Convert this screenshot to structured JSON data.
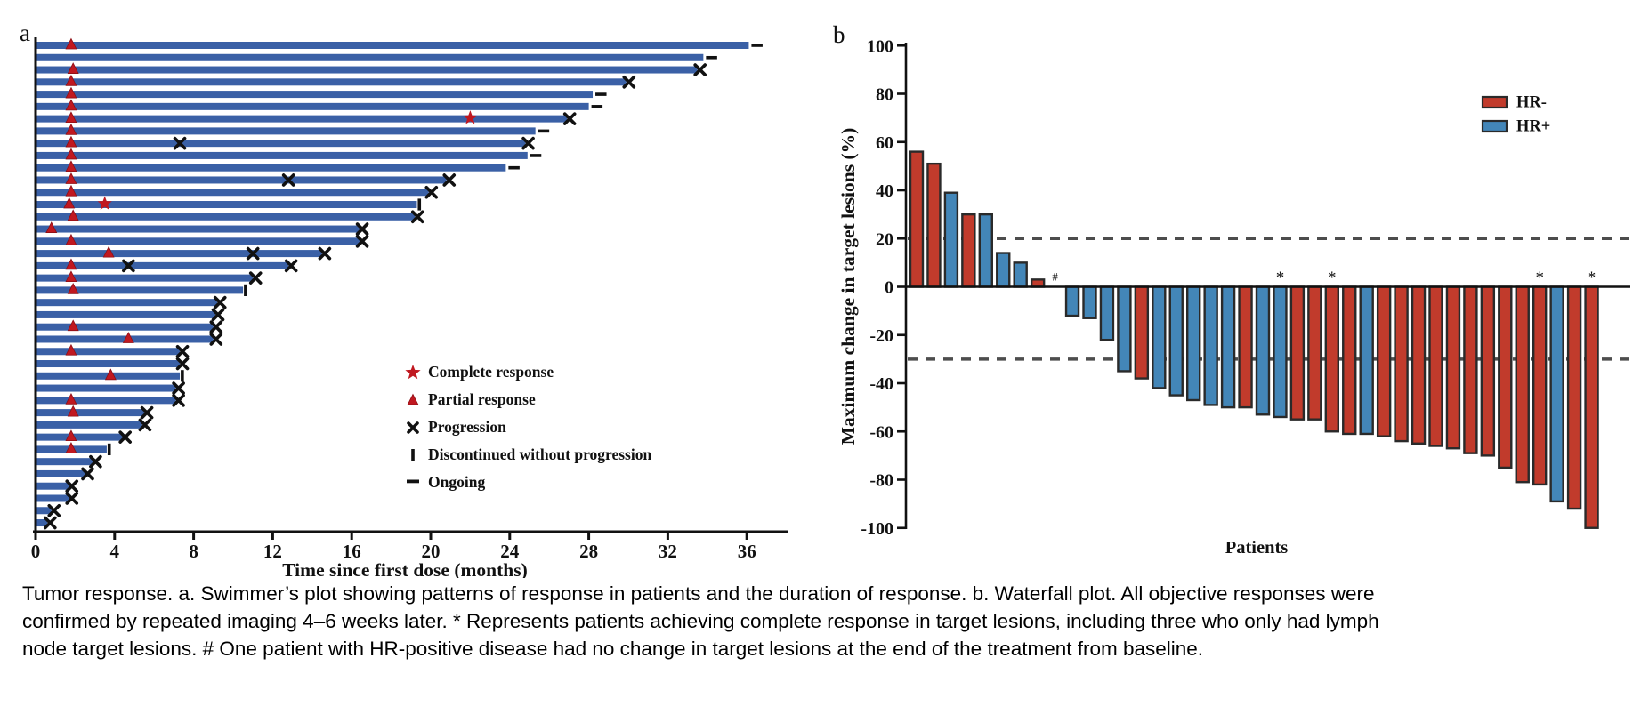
{
  "figure": {
    "panel_a_label": "a",
    "panel_b_label": "b"
  },
  "caption": {
    "lines": [
      "Tumor response. a. Swimmer’s plot showing patterns of response in patients and the duration of response. b. Waterfall plot. All objective responses were",
      "confirmed by repeated imaging 4–6 weeks later. * Represents patients achieving complete response in target lesions, including three who only had lymph",
      "node target lesions. # One patient with HR-positive disease had no change in target lesions at the end of the treatment from baseline."
    ]
  },
  "colors": {
    "swimmer_bar": "#3a60a6",
    "response_red": "#c01820",
    "marker_black": "#111111",
    "hr_neg": "#c13b2c",
    "hr_pos": "#4386b8",
    "bar_border": "#2a2a2a",
    "ref_line": "#4d4d4d",
    "axis": "#111111"
  },
  "chart_data": [
    {
      "type": "swimmer",
      "xlabel": "Time since first dose (months)",
      "xticks": [
        0,
        4,
        8,
        12,
        16,
        20,
        24,
        28,
        32,
        36
      ],
      "xlim": [
        0,
        38
      ],
      "legend": [
        {
          "symbol": "star",
          "label": "Complete response"
        },
        {
          "symbol": "triangle",
          "label": "Partial response"
        },
        {
          "symbol": "x",
          "label": "Progression"
        },
        {
          "symbol": "bar",
          "label": "Discontinued without progression"
        },
        {
          "symbol": "dash",
          "label": "Ongoing"
        }
      ],
      "patients": [
        {
          "duration": 36.1,
          "partial_response_at": 1.8,
          "end": "ongoing"
        },
        {
          "duration": 33.8,
          "end": "ongoing"
        },
        {
          "duration": 33.5,
          "partial_response_at": 1.9,
          "end": "progression"
        },
        {
          "duration": 29.9,
          "partial_response_at": 1.8,
          "end": "progression"
        },
        {
          "duration": 28.2,
          "partial_response_at": 1.8,
          "end": "ongoing"
        },
        {
          "duration": 28.0,
          "partial_response_at": 1.8,
          "end": "ongoing"
        },
        {
          "duration": 26.9,
          "partial_response_at": 1.8,
          "complete_response_at": 22.0,
          "end": "progression"
        },
        {
          "duration": 25.3,
          "partial_response_at": 1.8,
          "end": "ongoing"
        },
        {
          "duration": 24.8,
          "partial_response_at": 1.8,
          "progression_at": [
            7.3
          ],
          "end": "progression"
        },
        {
          "duration": 24.9,
          "partial_response_at": 1.8,
          "end": "ongoing"
        },
        {
          "duration": 23.8,
          "partial_response_at": 1.8,
          "end": "ongoing"
        },
        {
          "duration": 20.8,
          "partial_response_at": 1.8,
          "progression_at": [
            12.8
          ],
          "end": "progression"
        },
        {
          "duration": 19.9,
          "partial_response_at": 1.8,
          "end": "progression"
        },
        {
          "duration": 19.3,
          "partial_response_at": 1.7,
          "complete_response_at": 3.5,
          "end": "discontinued"
        },
        {
          "duration": 19.2,
          "partial_response_at": 1.9,
          "end": "progression"
        },
        {
          "duration": 16.4,
          "partial_response_at": 0.8,
          "end": "progression"
        },
        {
          "duration": 16.4,
          "partial_response_at": 1.8,
          "end": "progression"
        },
        {
          "duration": 14.5,
          "partial_response_at": 3.7,
          "progression_at": [
            11.0
          ],
          "end": "progression"
        },
        {
          "duration": 12.8,
          "partial_response_at": 1.8,
          "progression_at": [
            4.7
          ],
          "end": "progression"
        },
        {
          "duration": 11.0,
          "partial_response_at": 1.8,
          "end": "progression"
        },
        {
          "duration": 10.5,
          "partial_response_at": 1.9,
          "end": "discontinued"
        },
        {
          "duration": 9.2,
          "end": "progression"
        },
        {
          "duration": 9.1,
          "end": "progression"
        },
        {
          "duration": 9.0,
          "partial_response_at": 1.9,
          "end": "progression"
        },
        {
          "duration": 9.0,
          "partial_response_at": 4.7,
          "end": "progression"
        },
        {
          "duration": 7.3,
          "partial_response_at": 1.8,
          "end": "progression"
        },
        {
          "duration": 7.3,
          "end": "progression"
        },
        {
          "duration": 7.3,
          "partial_response_at": 3.8,
          "end": "discontinued"
        },
        {
          "duration": 7.1,
          "end": "progression"
        },
        {
          "duration": 7.1,
          "partial_response_at": 1.8,
          "end": "progression"
        },
        {
          "duration": 5.5,
          "partial_response_at": 1.9,
          "end": "progression"
        },
        {
          "duration": 5.4,
          "end": "progression"
        },
        {
          "duration": 4.4,
          "partial_response_at": 1.8,
          "end": "progression"
        },
        {
          "duration": 3.6,
          "partial_response_at": 1.8,
          "end": "discontinued"
        },
        {
          "duration": 2.9,
          "end": "progression"
        },
        {
          "duration": 2.5,
          "end": "progression"
        },
        {
          "duration": 1.7,
          "end": "progression"
        },
        {
          "duration": 1.7,
          "end": "progression"
        },
        {
          "duration": 0.8,
          "end": "progression"
        },
        {
          "duration": 0.6,
          "end": "progression"
        }
      ]
    },
    {
      "type": "waterfall",
      "ylabel": "Maximum change in target lesions (%)",
      "xlabel": "Patients",
      "yticks": [
        100,
        80,
        60,
        40,
        20,
        0,
        -20,
        -40,
        -60,
        -80,
        -100
      ],
      "ylim": [
        -100,
        100
      ],
      "reference_lines": [
        20,
        -30
      ],
      "legend": [
        {
          "label": "HR-",
          "group": "HR-"
        },
        {
          "label": "HR+",
          "group": "HR+"
        }
      ],
      "bars": [
        {
          "value": 56,
          "group": "HR-"
        },
        {
          "value": 51,
          "group": "HR-"
        },
        {
          "value": 39,
          "group": "HR+"
        },
        {
          "value": 30,
          "group": "HR-"
        },
        {
          "value": 30,
          "group": "HR+"
        },
        {
          "value": 14,
          "group": "HR+"
        },
        {
          "value": 10,
          "group": "HR+"
        },
        {
          "value": 3,
          "group": "HR-"
        },
        {
          "value": 0,
          "group": "HR+",
          "annotation": "#"
        },
        {
          "value": -12,
          "group": "HR+"
        },
        {
          "value": -13,
          "group": "HR+"
        },
        {
          "value": -22,
          "group": "HR+"
        },
        {
          "value": -35,
          "group": "HR+"
        },
        {
          "value": -38,
          "group": "HR-"
        },
        {
          "value": -42,
          "group": "HR+"
        },
        {
          "value": -45,
          "group": "HR+"
        },
        {
          "value": -47,
          "group": "HR+"
        },
        {
          "value": -49,
          "group": "HR+"
        },
        {
          "value": -50,
          "group": "HR+"
        },
        {
          "value": -50,
          "group": "HR-"
        },
        {
          "value": -53,
          "group": "HR+"
        },
        {
          "value": -54,
          "group": "HR+",
          "annotation": "*"
        },
        {
          "value": -55,
          "group": "HR-"
        },
        {
          "value": -55,
          "group": "HR-"
        },
        {
          "value": -60,
          "group": "HR-",
          "annotation": "*"
        },
        {
          "value": -61,
          "group": "HR-"
        },
        {
          "value": -61,
          "group": "HR+"
        },
        {
          "value": -62,
          "group": "HR-"
        },
        {
          "value": -64,
          "group": "HR-"
        },
        {
          "value": -65,
          "group": "HR-"
        },
        {
          "value": -66,
          "group": "HR-"
        },
        {
          "value": -67,
          "group": "HR-"
        },
        {
          "value": -69,
          "group": "HR-"
        },
        {
          "value": -70,
          "group": "HR-"
        },
        {
          "value": -75,
          "group": "HR-"
        },
        {
          "value": -81,
          "group": "HR-"
        },
        {
          "value": -82,
          "group": "HR-",
          "annotation": "*"
        },
        {
          "value": -89,
          "group": "HR+"
        },
        {
          "value": -92,
          "group": "HR-"
        },
        {
          "value": -100,
          "group": "HR-",
          "annotation": "*"
        }
      ]
    }
  ]
}
